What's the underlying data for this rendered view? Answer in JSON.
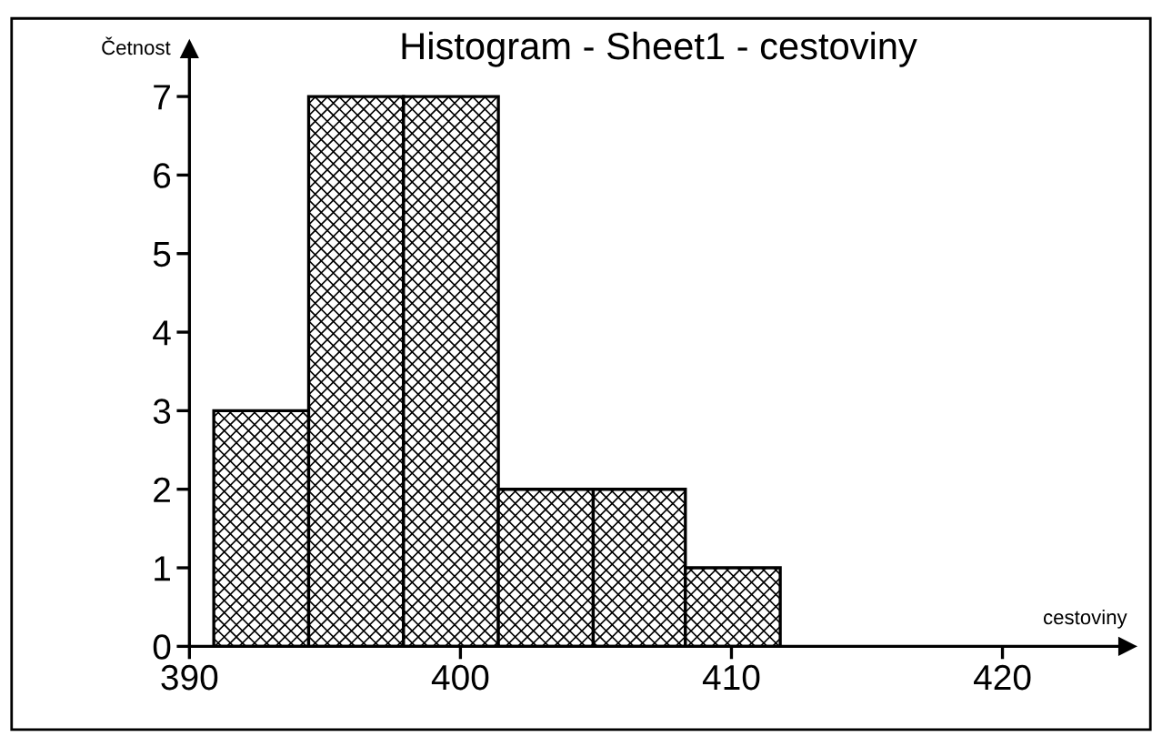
{
  "chart_data": {
    "type": "histogram",
    "title": "Histogram - Sheet1 - cestoviny",
    "xlabel": "cestoviny",
    "ylabel": "Četnost",
    "bins": [
      390.9,
      394.4,
      397.9,
      401.4,
      404.9,
      408.3,
      411.8
    ],
    "values": [
      3,
      7,
      7,
      2,
      2,
      1
    ],
    "color": "#000000",
    "xlim": [
      390,
      424.6
    ],
    "ylim": [
      0,
      7.6
    ],
    "xticks": [
      390,
      400,
      410,
      420
    ],
    "yticks": [
      0,
      1,
      2,
      3,
      4,
      5,
      6,
      7
    ],
    "grid": false,
    "legend": false
  }
}
